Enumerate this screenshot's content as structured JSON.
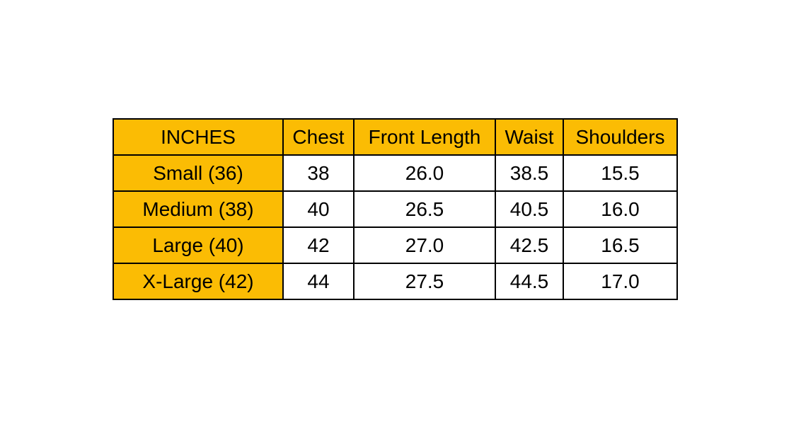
{
  "table": {
    "header": [
      "INCHES",
      "Chest",
      "Front Length",
      "Waist",
      "Shoulders"
    ],
    "rows": [
      [
        "Small (36)",
        "38",
        "26.0",
        "38.5",
        "15.5"
      ],
      [
        "Medium (38)",
        "40",
        "26.5",
        "40.5",
        "16.0"
      ],
      [
        "Large (40)",
        "42",
        "27.0",
        "42.5",
        "16.5"
      ],
      [
        "X-Large (42)",
        "44",
        "27.5",
        "44.5",
        "17.0"
      ]
    ]
  }
}
